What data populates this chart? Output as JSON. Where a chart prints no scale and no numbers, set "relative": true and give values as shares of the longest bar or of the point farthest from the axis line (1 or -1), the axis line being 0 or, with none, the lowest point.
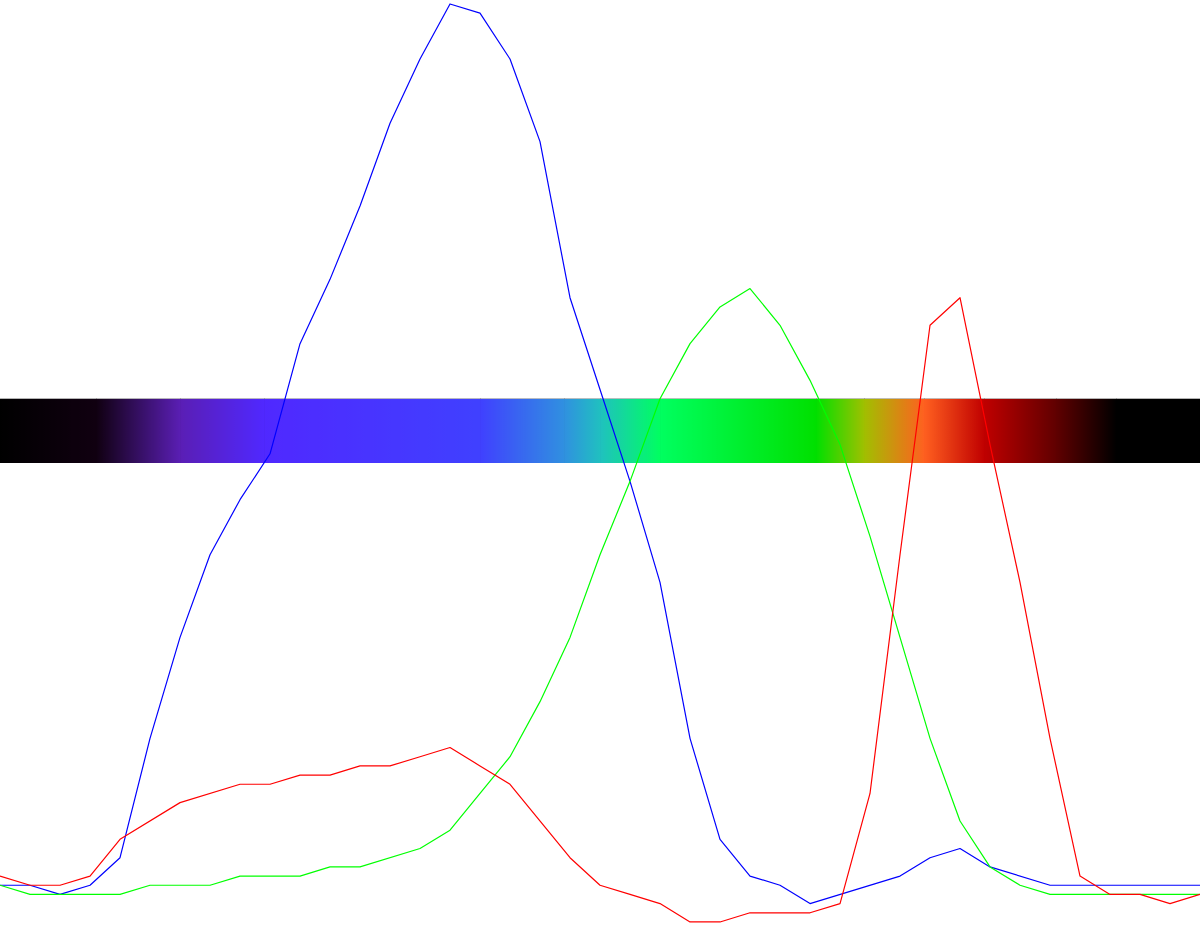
{
  "chart_data": {
    "type": "line",
    "relative": true,
    "categories": [
      null,
      null,
      null,
      null,
      null,
      null,
      null,
      null,
      null,
      null,
      null,
      null,
      null,
      null,
      null,
      null,
      null,
      null,
      null,
      null,
      null,
      null,
      null,
      null,
      null,
      null,
      null,
      null,
      null,
      null,
      null,
      null,
      null,
      null,
      null,
      null,
      null,
      null,
      null,
      null,
      null
    ],
    "series": [
      {
        "color": "#0000ff",
        "values": [
          0.04,
          0.04,
          0.03,
          0.04,
          0.07,
          0.2,
          0.31,
          0.4,
          0.46,
          0.51,
          0.63,
          0.7,
          0.78,
          0.87,
          0.94,
          1.0,
          0.99,
          0.94,
          0.85,
          0.68,
          0.58,
          0.48,
          0.37,
          0.2,
          0.09,
          0.05,
          0.04,
          0.02,
          0.03,
          0.04,
          0.05,
          0.07,
          0.08,
          0.06,
          0.05,
          0.04,
          0.04,
          0.04,
          0.04,
          0.04,
          0.04
        ]
      },
      {
        "color": "#00ff00",
        "values": [
          0.04,
          0.03,
          0.03,
          0.03,
          0.03,
          0.04,
          0.04,
          0.04,
          0.05,
          0.05,
          0.05,
          0.06,
          0.06,
          0.07,
          0.08,
          0.1,
          0.14,
          0.18,
          0.24,
          0.31,
          0.4,
          0.48,
          0.57,
          0.63,
          0.67,
          0.69,
          0.65,
          0.59,
          0.52,
          0.42,
          0.31,
          0.2,
          0.11,
          0.06,
          0.04,
          0.03,
          0.03,
          0.03,
          0.03,
          0.03,
          0.03
        ]
      },
      {
        "color": "#ff0000",
        "values": [
          0.05,
          0.04,
          0.04,
          0.05,
          0.09,
          0.11,
          0.13,
          0.14,
          0.15,
          0.15,
          0.16,
          0.16,
          0.17,
          0.17,
          0.18,
          0.19,
          0.17,
          0.15,
          0.11,
          0.07,
          0.04,
          0.03,
          0.02,
          0,
          0,
          0.01,
          0.01,
          0.01,
          0.02,
          0.14,
          0.4,
          0.65,
          0.68,
          0.52,
          0.37,
          0.2,
          0.05,
          0.03,
          0.03,
          0.02,
          0.03
        ]
      }
    ]
  }
}
